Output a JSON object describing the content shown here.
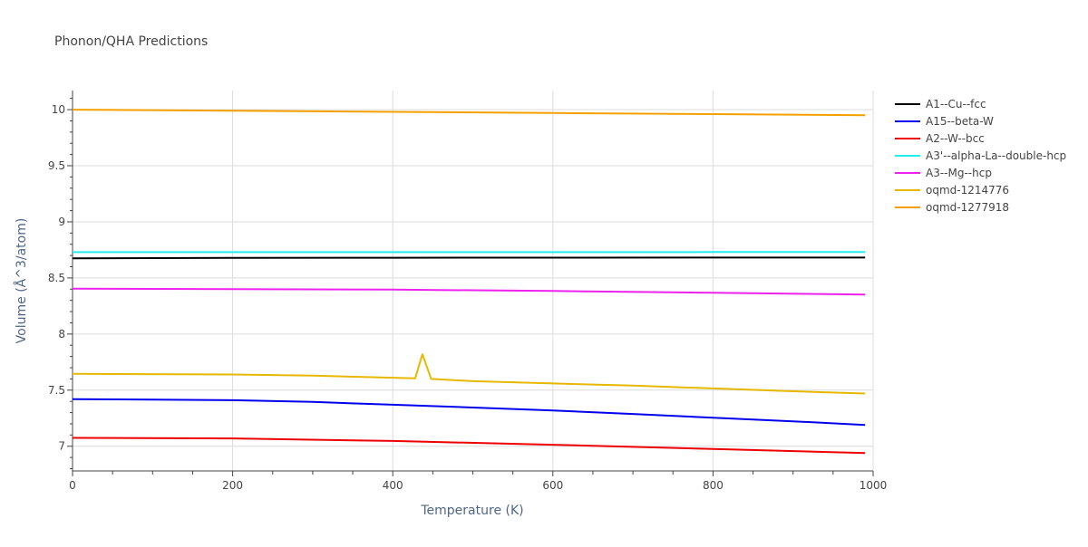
{
  "chart_data": {
    "type": "line",
    "title": "Phonon/QHA Predictions",
    "xlabel": "Temperature (K)",
    "ylabel": "Volume (Å^3/atom)",
    "xlim": [
      0,
      1000
    ],
    "ylim": [
      6.78,
      10.17
    ],
    "x_ticks": [
      0,
      200,
      400,
      600,
      800,
      1000
    ],
    "y_ticks": [
      7,
      7.5,
      8,
      8.5,
      9,
      9.5,
      10
    ],
    "x_tick_labels": [
      "0",
      "200",
      "400",
      "600",
      "800",
      "1000"
    ],
    "y_tick_labels": [
      "7",
      "7.5",
      "8",
      "8.5",
      "9",
      "9.5",
      "10"
    ],
    "grid": true,
    "legend_position": "right",
    "series": [
      {
        "name": "A1--Cu--fcc",
        "color": "#000000",
        "x": [
          0,
          200,
          400,
          600,
          800,
          990
        ],
        "y": [
          8.675,
          8.678,
          8.68,
          8.681,
          8.682,
          8.682
        ]
      },
      {
        "name": "A15--beta-W",
        "color": "#0000ee",
        "x": [
          0,
          100,
          200,
          300,
          400,
          500,
          600,
          700,
          800,
          900,
          990
        ],
        "y": [
          7.42,
          7.416,
          7.41,
          7.395,
          7.37,
          7.345,
          7.318,
          7.288,
          7.255,
          7.222,
          7.19
        ]
      },
      {
        "name": "A2--W--bcc",
        "color": "#ee0000",
        "x": [
          0,
          200,
          400,
          600,
          800,
          990
        ],
        "y": [
          7.075,
          7.07,
          7.047,
          7.013,
          6.975,
          6.94
        ]
      },
      {
        "name": "A3'--alpha-La--double-hcp",
        "color": "#22eeee",
        "x": [
          0,
          200,
          400,
          600,
          800,
          990
        ],
        "y": [
          8.73,
          8.73,
          8.73,
          8.73,
          8.731,
          8.732
        ]
      },
      {
        "name": "A3--Mg--hcp",
        "color": "#ee22ee",
        "x": [
          0,
          200,
          400,
          600,
          800,
          990
        ],
        "y": [
          8.405,
          8.4,
          8.396,
          8.384,
          8.368,
          8.352
        ]
      },
      {
        "name": "oqmd-1214776",
        "color": "#e6b800",
        "x": [
          0,
          200,
          300,
          428,
          437,
          448,
          500,
          600,
          700,
          800,
          900,
          990
        ],
        "y": [
          7.645,
          7.64,
          7.63,
          7.605,
          7.82,
          7.6,
          7.58,
          7.56,
          7.54,
          7.515,
          7.49,
          7.47
        ]
      },
      {
        "name": "oqmd-1277918",
        "color": "#f5a000",
        "x": [
          0,
          200,
          400,
          600,
          800,
          990
        ],
        "y": [
          10.0,
          9.99,
          9.98,
          9.97,
          9.96,
          9.95
        ]
      }
    ]
  }
}
